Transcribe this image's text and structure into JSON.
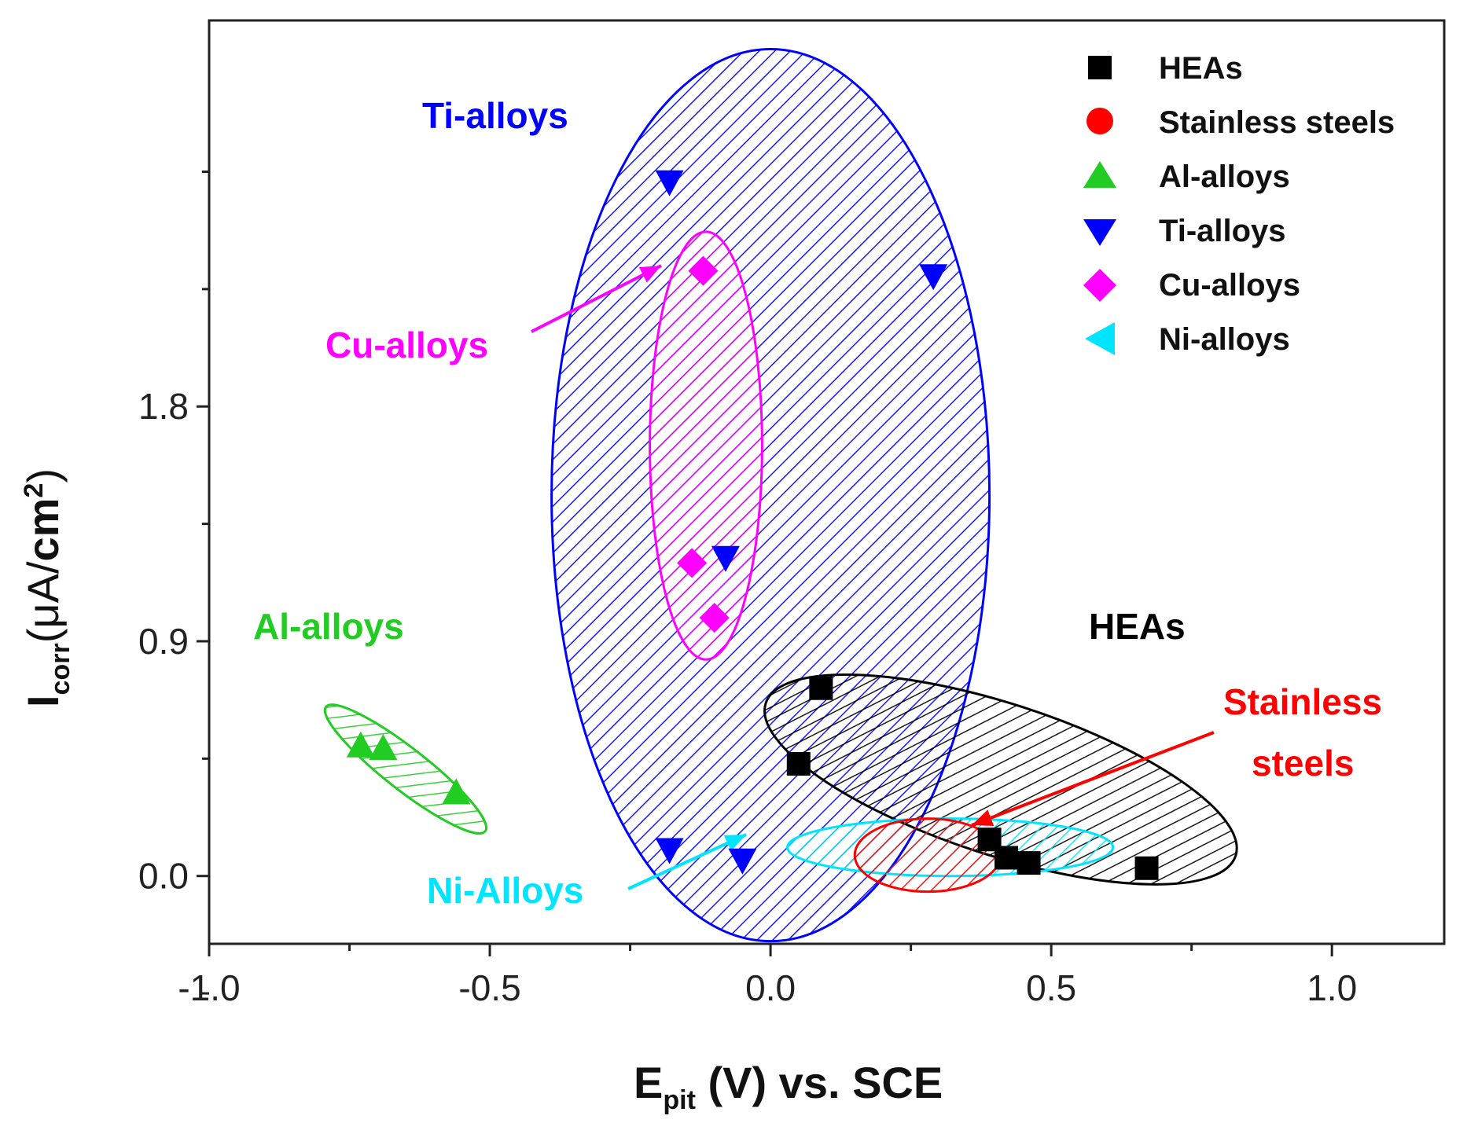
{
  "chart_data": {
    "type": "scatter",
    "title": "",
    "xlabel": {
      "main": "E",
      "sub": "pit",
      "rest": " (V) vs. SCE"
    },
    "ylabel": {
      "main": "I",
      "sub": "corr",
      "open": "(μA/",
      "bold": "cm",
      "sup": "2",
      "close": ")"
    },
    "xlim": [
      -1.0,
      1.2
    ],
    "ylim": [
      -0.26,
      3.28
    ],
    "xticks": [
      "-1.0",
      "-0.5",
      "0.0",
      "0.5",
      "1.0"
    ],
    "yticks": [
      "0.0",
      "0.9",
      "1.8"
    ],
    "series": [
      {
        "name": "HEAs",
        "marker": "square",
        "color": "#000000",
        "x": [
          0.09,
          0.05,
          0.39,
          0.42,
          0.46,
          0.67
        ],
        "y": [
          0.72,
          0.43,
          0.14,
          0.07,
          0.05,
          0.03
        ]
      },
      {
        "name": "Stainless steels",
        "marker": "circle",
        "color": "#ff0000",
        "x": [],
        "y": []
      },
      {
        "name": "Al-alloys",
        "marker": "triangle-up",
        "color": "#22cc22",
        "x": [
          -0.73,
          -0.69,
          -0.56
        ],
        "y": [
          0.5,
          0.49,
          0.32
        ]
      },
      {
        "name": "Ti-alloys",
        "marker": "triangle-down",
        "color": "#0000ff",
        "x": [
          -0.18,
          0.29,
          -0.08,
          -0.18,
          -0.05
        ],
        "y": [
          2.66,
          2.3,
          1.22,
          0.1,
          0.06
        ]
      },
      {
        "name": "Cu-alloys",
        "marker": "diamond",
        "color": "#ff00ff",
        "x": [
          -0.12,
          -0.14,
          -0.1
        ],
        "y": [
          2.32,
          1.2,
          0.99
        ]
      },
      {
        "name": "Ni-alloys",
        "marker": "triangle-left",
        "color": "#00e5ff",
        "x": [],
        "y": []
      }
    ],
    "regions": [
      {
        "name": "Ti-alloys",
        "color": "#0000ff",
        "cx": 0.0,
        "cy": 1.46,
        "rx": 0.39,
        "ry": 1.71,
        "rot": 0
      },
      {
        "name": "Cu-alloys",
        "color": "#ff00ff",
        "cx": -0.115,
        "cy": 1.65,
        "rx": 0.1,
        "ry": 0.82,
        "rot": 0
      },
      {
        "name": "Al-alloys",
        "color": "#22cc22",
        "cx": -0.65,
        "cy": 0.41,
        "rx": 0.18,
        "ry": 0.08,
        "rot": 38
      },
      {
        "name": "HEAs",
        "color": "#000000",
        "cx": 0.41,
        "cy": 0.37,
        "rx": 0.44,
        "ry": 0.29,
        "rot": 18
      },
      {
        "name": "Ni-alloys",
        "color": "#00e5ff",
        "cx": 0.32,
        "cy": 0.11,
        "rx": 0.29,
        "ry": 0.11,
        "rot": 0
      },
      {
        "name": "Stainless steels",
        "color": "#ff0000",
        "cx": 0.28,
        "cy": 0.08,
        "rx": 0.13,
        "ry": 0.14,
        "rot": 0
      }
    ],
    "annotations": [
      {
        "text": "Ti-alloys",
        "color": "#0000ff"
      },
      {
        "text": "Cu-alloys",
        "color": "#ff00ff"
      },
      {
        "text": "Al-alloys",
        "color": "#22cc22"
      },
      {
        "text": "HEAs",
        "color": "#000000"
      },
      {
        "text": "Stainless",
        "color": "#ff0000"
      },
      {
        "text": "steels",
        "color": "#ff0000"
      },
      {
        "text": "Ni-Alloys",
        "color": "#00e5ff"
      }
    ],
    "legend": {
      "position": "top-right",
      "entries": [
        "HEAs",
        "Stainless steels",
        "Al-alloys",
        "Ti-alloys",
        "Cu-alloys",
        "Ni-alloys"
      ]
    }
  }
}
